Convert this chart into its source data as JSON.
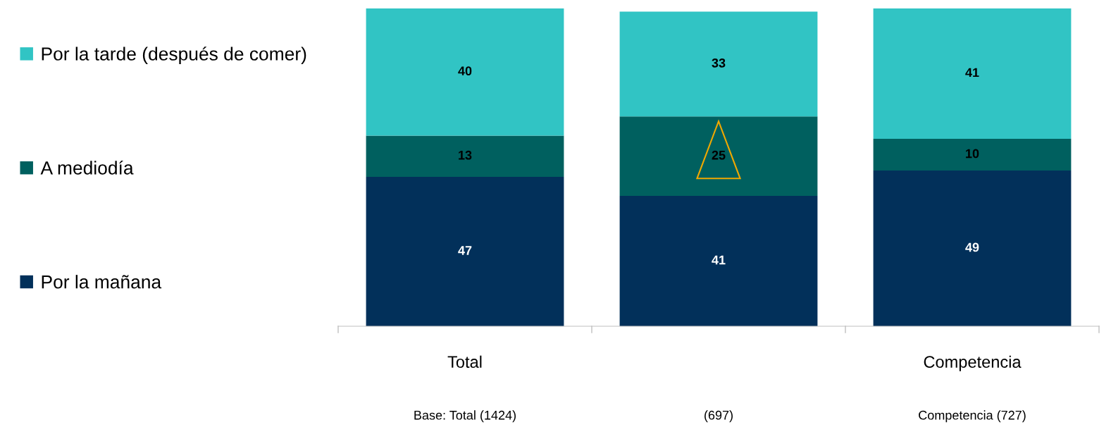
{
  "chart_data": {
    "type": "bar",
    "stacked": true,
    "categories": [
      "Total",
      null,
      "Competencia"
    ],
    "series": [
      {
        "name": "Por la mañana",
        "color": "#02305a",
        "values": [
          47,
          41,
          49
        ]
      },
      {
        "name": "A mediodía",
        "color": "#00605f",
        "values": [
          13,
          25,
          10
        ]
      },
      {
        "name": "Por la tarde (después de comer)",
        "color": "#31c4c4",
        "values": [
          40,
          33,
          41
        ]
      }
    ],
    "data_labels": true,
    "legend": "left",
    "grid": false,
    "annotations": [
      "Base: Total (1424)",
      "(697)",
      "Competencia (727)"
    ]
  }
}
